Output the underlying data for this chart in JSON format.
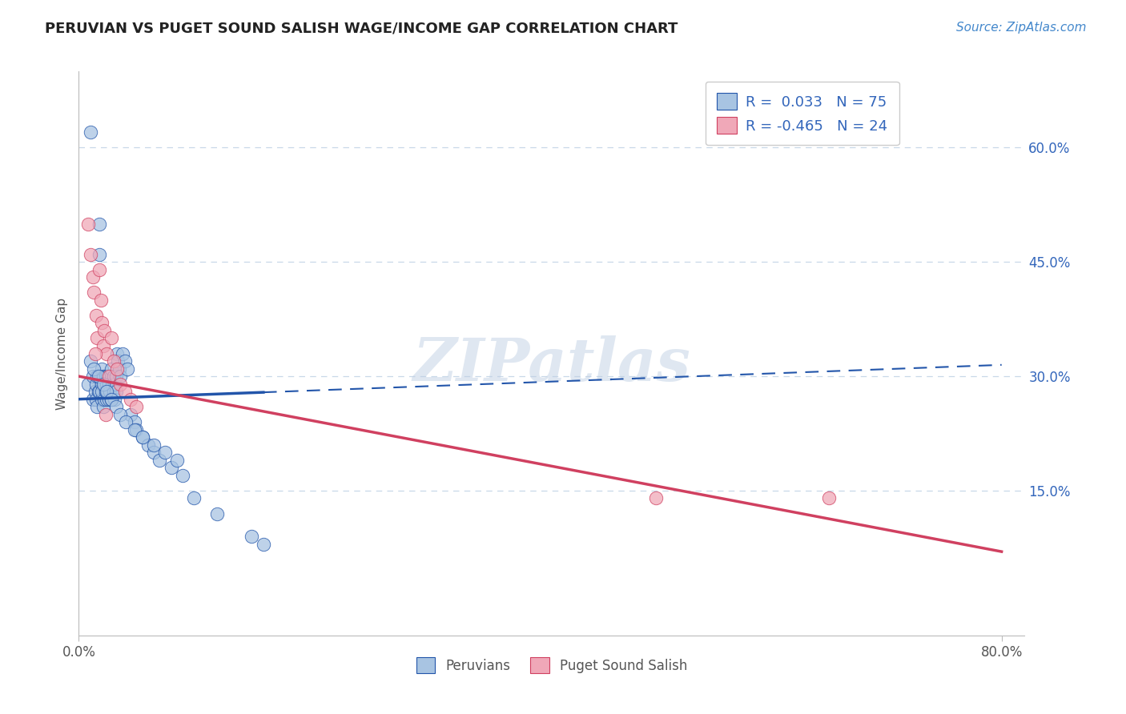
{
  "title": "PERUVIAN VS PUGET SOUND SALISH WAGE/INCOME GAP CORRELATION CHART",
  "source": "Source: ZipAtlas.com",
  "ylabel": "Wage/Income Gap",
  "legend_label1": "Peruvians",
  "legend_label2": "Puget Sound Salish",
  "R1": 0.033,
  "N1": 75,
  "R2": -0.465,
  "N2": 24,
  "xlim": [
    0.0,
    0.82
  ],
  "ylim": [
    -0.04,
    0.7
  ],
  "yticks": [
    0.15,
    0.3,
    0.45,
    0.6
  ],
  "ytick_labels": [
    "15.0%",
    "30.0%",
    "45.0%",
    "60.0%"
  ],
  "xtick_labels": [
    "0.0%",
    "80.0%"
  ],
  "xtick_vals": [
    0.0,
    0.8
  ],
  "color_blue": "#a8c4e2",
  "color_pink": "#f0a8b8",
  "line_blue": "#2255aa",
  "line_pink": "#d04060",
  "watermark": "ZIPatlas",
  "background": "#ffffff",
  "grid_color": "#c8d8e8",
  "blue_x": [
    0.008,
    0.01,
    0.012,
    0.012,
    0.014,
    0.015,
    0.015,
    0.016,
    0.016,
    0.017,
    0.018,
    0.018,
    0.018,
    0.018,
    0.02,
    0.02,
    0.02,
    0.02,
    0.021,
    0.021,
    0.022,
    0.022,
    0.023,
    0.023,
    0.024,
    0.024,
    0.025,
    0.025,
    0.026,
    0.026,
    0.027,
    0.027,
    0.028,
    0.028,
    0.029,
    0.03,
    0.03,
    0.031,
    0.031,
    0.032,
    0.032,
    0.033,
    0.034,
    0.035,
    0.036,
    0.038,
    0.04,
    0.042,
    0.045,
    0.048,
    0.05,
    0.055,
    0.06,
    0.065,
    0.07,
    0.08,
    0.09,
    0.1,
    0.12,
    0.15,
    0.16,
    0.01,
    0.013,
    0.017,
    0.021,
    0.024,
    0.028,
    0.032,
    0.036,
    0.041,
    0.048,
    0.055,
    0.065,
    0.075,
    0.085
  ],
  "blue_y": [
    0.29,
    0.62,
    0.27,
    0.3,
    0.28,
    0.27,
    0.29,
    0.26,
    0.3,
    0.28,
    0.5,
    0.46,
    0.28,
    0.3,
    0.27,
    0.29,
    0.31,
    0.28,
    0.3,
    0.26,
    0.29,
    0.27,
    0.28,
    0.3,
    0.27,
    0.29,
    0.28,
    0.3,
    0.27,
    0.29,
    0.3,
    0.28,
    0.27,
    0.31,
    0.29,
    0.28,
    0.3,
    0.29,
    0.27,
    0.3,
    0.28,
    0.33,
    0.32,
    0.31,
    0.3,
    0.33,
    0.32,
    0.31,
    0.25,
    0.24,
    0.23,
    0.22,
    0.21,
    0.2,
    0.19,
    0.18,
    0.17,
    0.14,
    0.12,
    0.09,
    0.08,
    0.32,
    0.31,
    0.3,
    0.29,
    0.28,
    0.27,
    0.26,
    0.25,
    0.24,
    0.23,
    0.22,
    0.21,
    0.2,
    0.19
  ],
  "pink_x": [
    0.008,
    0.01,
    0.012,
    0.013,
    0.015,
    0.016,
    0.018,
    0.019,
    0.02,
    0.021,
    0.022,
    0.024,
    0.026,
    0.028,
    0.03,
    0.033,
    0.036,
    0.04,
    0.045,
    0.05,
    0.5,
    0.65,
    0.014,
    0.023
  ],
  "pink_y": [
    0.5,
    0.46,
    0.43,
    0.41,
    0.38,
    0.35,
    0.44,
    0.4,
    0.37,
    0.34,
    0.36,
    0.33,
    0.3,
    0.35,
    0.32,
    0.31,
    0.29,
    0.28,
    0.27,
    0.26,
    0.14,
    0.14,
    0.33,
    0.25
  ],
  "blue_trend_start": 0.27,
  "blue_trend_end": 0.315,
  "pink_trend_start": 0.3,
  "pink_trend_end": 0.07
}
